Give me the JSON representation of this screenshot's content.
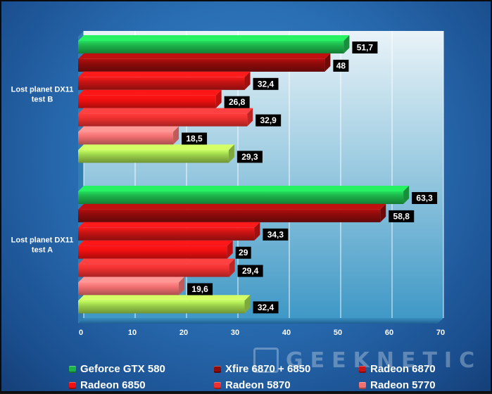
{
  "chart_data": {
    "type": "bar",
    "orientation": "horizontal",
    "categories": [
      "Lost planet DX11 test B",
      "Lost planet DX11 test A"
    ],
    "category_labels": [
      [
        "Lost planet DX11",
        "test B"
      ],
      [
        "Lost planet DX11",
        "test A"
      ]
    ],
    "series": [
      {
        "name": "Geforce GTX 580",
        "color": "#1db34a",
        "values": [
          51.7,
          63.3
        ],
        "value_labels": [
          "51,7",
          "63,3"
        ]
      },
      {
        "name": "Xfire 6870 + 6850",
        "color": "#8e0b0b",
        "values": [
          48,
          58.8
        ],
        "value_labels": [
          "48",
          "58,8"
        ]
      },
      {
        "name": "Radeon 6870",
        "color": "#c81414",
        "values": [
          32.4,
          34.3
        ],
        "value_labels": [
          "32,4",
          "34,3"
        ]
      },
      {
        "name": "Radeon 6850",
        "color": "#f01010",
        "values": [
          26.8,
          29
        ],
        "value_labels": [
          "26,8",
          "29"
        ]
      },
      {
        "name": "Radeon 5870",
        "color": "#ee3030",
        "values": [
          32.9,
          29.4
        ],
        "value_labels": [
          "32,9",
          "29,4"
        ]
      },
      {
        "name": "Radeon 5770",
        "color": "#f27070",
        "values": [
          18.5,
          19.6
        ],
        "value_labels": [
          "18,5",
          "19,6"
        ]
      },
      {
        "name": "",
        "color": "#9ed44c",
        "values": [
          29.3,
          32.4
        ],
        "value_labels": [
          "29,3",
          "32,4"
        ]
      }
    ],
    "xlim": [
      0,
      70
    ],
    "x_ticks": [
      0,
      10,
      20,
      30,
      40,
      50,
      60,
      70
    ],
    "grid": true,
    "legend_position": "bottom",
    "title": "",
    "xlabel": "",
    "ylabel": ""
  },
  "legend": {
    "items": [
      {
        "label": "Geforce GTX 580",
        "color": "#1db34a"
      },
      {
        "label": "Xfire 6870 + 6850",
        "color": "#8e0b0b"
      },
      {
        "label": "Radeon 6870",
        "color": "#c81414"
      },
      {
        "label": "Radeon 6850",
        "color": "#f01010"
      },
      {
        "label": "Radeon 5870",
        "color": "#ee3030"
      },
      {
        "label": "Radeon 5770",
        "color": "#f27070"
      }
    ]
  },
  "watermark": {
    "text": "GEEKNETIC"
  },
  "colors": {
    "background": "#2a6fb4",
    "plot_top": "#e9f3f8",
    "plot_bottom": "#3f98c6",
    "value_box": "#000000"
  }
}
